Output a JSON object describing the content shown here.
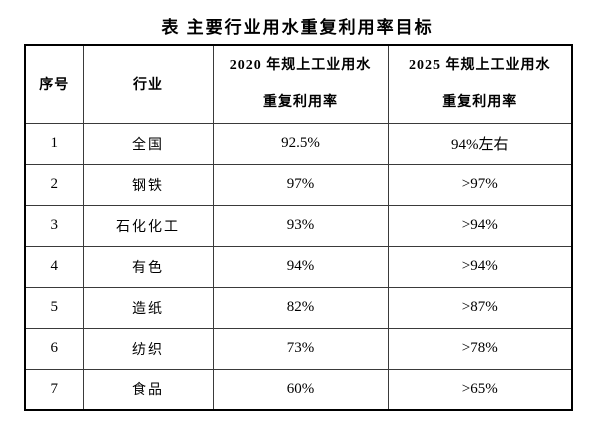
{
  "title": "表 主要行业用水重复利用率目标",
  "table": {
    "headers": {
      "no": "序号",
      "industry": "行业",
      "y2020_line1": "2020 年规上工业用水",
      "y2020_line2": "重复利用率",
      "y2025_line1": "2025 年规上工业用水",
      "y2025_line2": "重复利用率"
    },
    "rows": [
      {
        "no": "1",
        "industry": "全国",
        "rate2020": "92.5%",
        "rate2025": "94%左右"
      },
      {
        "no": "2",
        "industry": "钢铁",
        "rate2020": "97%",
        "rate2025": ">97%"
      },
      {
        "no": "3",
        "industry": "石化化工",
        "rate2020": "93%",
        "rate2025": ">94%"
      },
      {
        "no": "4",
        "industry": "有色",
        "rate2020": "94%",
        "rate2025": ">94%"
      },
      {
        "no": "5",
        "industry": "造纸",
        "rate2020": "82%",
        "rate2025": ">87%"
      },
      {
        "no": "6",
        "industry": "纺织",
        "rate2020": "73%",
        "rate2025": ">78%"
      },
      {
        "no": "7",
        "industry": "食品",
        "rate2020": "60%",
        "rate2025": ">65%"
      }
    ]
  },
  "colors": {
    "text": "#000000",
    "border_outer": "#000000",
    "border_inner": "#3a3a3a",
    "background": "#ffffff"
  }
}
